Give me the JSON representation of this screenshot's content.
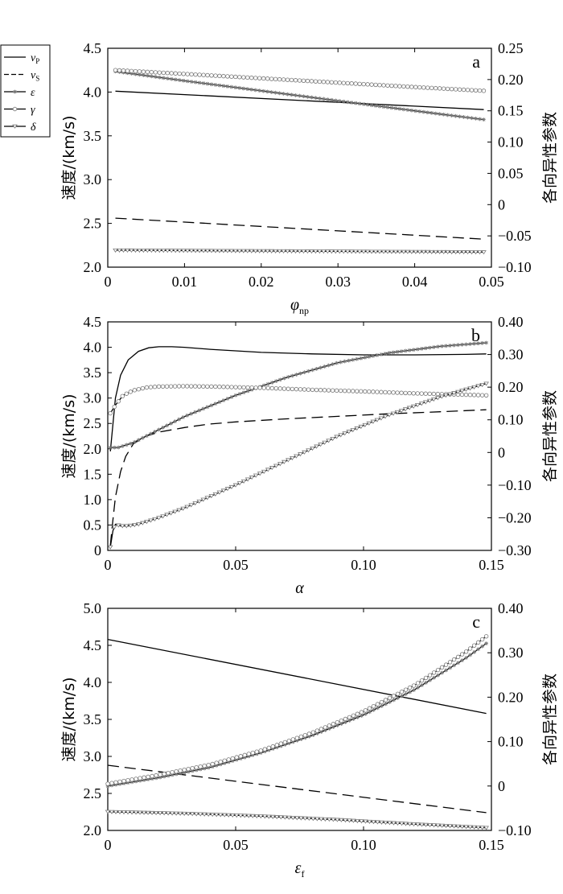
{
  "legend": {
    "items": [
      {
        "symbol": "v",
        "sub": "P",
        "style": "solid",
        "marker": "none"
      },
      {
        "symbol": "v",
        "sub": "S",
        "style": "dashed",
        "marker": "none"
      },
      {
        "symbol": "ε",
        "sub": "",
        "style": "solid",
        "marker": "star"
      },
      {
        "symbol": "γ",
        "sub": "",
        "style": "solid",
        "marker": "circle"
      },
      {
        "symbol": "δ",
        "sub": "",
        "style": "solid",
        "marker": "triangle"
      }
    ]
  },
  "chart_data": [
    {
      "type": "line",
      "panel_label": "a",
      "xlabel": "φ",
      "xlabel_sub": "np",
      "ylabel": "速度/(km/s)",
      "y2label": "各向异性参数",
      "xlim": [
        0,
        0.05
      ],
      "ylim": [
        2.0,
        4.5
      ],
      "y2lim": [
        -0.1,
        0.25
      ],
      "xticks": [
        "0",
        "0.01",
        "0.02",
        "0.03",
        "0.04",
        "0.05"
      ],
      "yticks": [
        "2.0",
        "2.5",
        "3.0",
        "3.5",
        "4.0",
        "4.5"
      ],
      "y2ticks": [
        "−0.10",
        "−0.05",
        "0",
        "0.05",
        "0.10",
        "0.15",
        "0.20",
        "0.25"
      ],
      "series": [
        {
          "name": "vP",
          "axis": "left",
          "x": [
            0.001,
            0.049
          ],
          "y": [
            4.01,
            3.8
          ]
        },
        {
          "name": "vS",
          "axis": "left",
          "x": [
            0.001,
            0.049
          ],
          "y": [
            2.56,
            2.32
          ]
        },
        {
          "name": "ε",
          "axis": "right",
          "x": [
            0.001,
            0.01,
            0.02,
            0.03,
            0.04,
            0.049
          ],
          "y": [
            0.213,
            0.198,
            0.182,
            0.166,
            0.15,
            0.136
          ]
        },
        {
          "name": "γ",
          "axis": "right",
          "x": [
            0.001,
            0.01,
            0.02,
            0.03,
            0.04,
            0.049
          ],
          "y": [
            0.215,
            0.209,
            0.202,
            0.195,
            0.188,
            0.182
          ]
        },
        {
          "name": "δ",
          "axis": "right",
          "x": [
            0.001,
            0.049
          ],
          "y": [
            -0.073,
            -0.076
          ]
        }
      ]
    },
    {
      "type": "line",
      "panel_label": "b",
      "xlabel": "α",
      "xlabel_sub": "",
      "ylabel": "速度/(km/s)",
      "y2label": "各向异性参数",
      "xlim": [
        0,
        0.15
      ],
      "ylim": [
        0,
        4.5
      ],
      "y2lim": [
        -0.3,
        0.4
      ],
      "xticks": [
        "0",
        "0.05",
        "0.10",
        "0.15"
      ],
      "yticks": [
        "0",
        "0.5",
        "1.0",
        "1.5",
        "2.0",
        "2.5",
        "3.0",
        "3.5",
        "4.0",
        "4.5"
      ],
      "y2ticks": [
        "−0.30",
        "−0.20",
        "−0.10",
        "0",
        "0.10",
        "0.20",
        "0.30",
        "0.40"
      ],
      "series": [
        {
          "name": "vP",
          "axis": "left",
          "x": [
            0.001,
            0.003,
            0.005,
            0.008,
            0.012,
            0.016,
            0.02,
            0.025,
            0.03,
            0.04,
            0.06,
            0.08,
            0.1,
            0.12,
            0.14,
            0.148
          ],
          "y": [
            1.95,
            3.0,
            3.45,
            3.75,
            3.92,
            3.99,
            4.01,
            4.01,
            4.0,
            3.96,
            3.9,
            3.87,
            3.85,
            3.85,
            3.86,
            3.87
          ]
        },
        {
          "name": "vS",
          "axis": "left",
          "x": [
            0.001,
            0.002,
            0.003,
            0.005,
            0.007,
            0.01,
            0.015,
            0.02,
            0.03,
            0.04,
            0.05,
            0.07,
            0.09,
            0.11,
            0.13,
            0.148
          ],
          "y": [
            0.1,
            0.6,
            1.05,
            1.55,
            1.85,
            2.1,
            2.25,
            2.33,
            2.42,
            2.49,
            2.53,
            2.59,
            2.64,
            2.69,
            2.73,
            2.77
          ]
        },
        {
          "name": "ε",
          "axis": "right",
          "x": [
            0.001,
            0.004,
            0.01,
            0.02,
            0.03,
            0.05,
            0.07,
            0.09,
            0.11,
            0.13,
            0.148
          ],
          "y": [
            0.015,
            0.015,
            0.03,
            0.07,
            0.11,
            0.175,
            0.23,
            0.275,
            0.305,
            0.325,
            0.336
          ]
        },
        {
          "name": "γ",
          "axis": "right",
          "x": [
            0.001,
            0.003,
            0.006,
            0.01,
            0.015,
            0.02,
            0.03,
            0.04,
            0.06,
            0.08,
            0.1,
            0.12,
            0.148
          ],
          "y": [
            0.12,
            0.145,
            0.175,
            0.19,
            0.199,
            0.202,
            0.203,
            0.202,
            0.198,
            0.192,
            0.187,
            0.181,
            0.175
          ]
        },
        {
          "name": "δ",
          "axis": "right",
          "x": [
            0.001,
            0.002,
            0.003,
            0.005,
            0.008,
            0.012,
            0.02,
            0.03,
            0.05,
            0.07,
            0.09,
            0.11,
            0.13,
            0.148
          ],
          "y": [
            -0.29,
            -0.24,
            -0.22,
            -0.225,
            -0.225,
            -0.22,
            -0.2,
            -0.17,
            -0.1,
            -0.025,
            0.05,
            0.115,
            0.17,
            0.211
          ]
        }
      ]
    },
    {
      "type": "line",
      "panel_label": "c",
      "xlabel": "ε",
      "xlabel_sub": "f",
      "ylabel": "速度/(km/s)",
      "y2label": "各向异性参数",
      "xlim": [
        0,
        0.15
      ],
      "ylim": [
        2.0,
        5.0
      ],
      "y2lim": [
        -0.1,
        0.4
      ],
      "xticks": [
        "0",
        "0.05",
        "0.10",
        "0.15"
      ],
      "yticks": [
        "2.0",
        "2.5",
        "3.0",
        "3.5",
        "4.0",
        "4.5",
        "5.0"
      ],
      "y2ticks": [
        "−0.10",
        "0",
        "0.10",
        "0.20",
        "0.30",
        "0.40"
      ],
      "series": [
        {
          "name": "vP",
          "axis": "left",
          "x": [
            0,
            0.148
          ],
          "y": [
            4.58,
            3.58
          ]
        },
        {
          "name": "vS",
          "axis": "left",
          "x": [
            0,
            0.148
          ],
          "y": [
            2.88,
            2.24
          ]
        },
        {
          "name": "ε",
          "axis": "right",
          "x": [
            0,
            0.02,
            0.04,
            0.06,
            0.08,
            0.1,
            0.12,
            0.14,
            0.148
          ],
          "y": [
            0.0,
            0.019,
            0.042,
            0.075,
            0.114,
            0.16,
            0.217,
            0.288,
            0.321
          ]
        },
        {
          "name": "γ",
          "axis": "right",
          "x": [
            0,
            0.02,
            0.04,
            0.06,
            0.08,
            0.1,
            0.12,
            0.14,
            0.148
          ],
          "y": [
            0.005,
            0.025,
            0.048,
            0.08,
            0.12,
            0.168,
            0.227,
            0.302,
            0.337
          ]
        },
        {
          "name": "δ",
          "axis": "right",
          "x": [
            0,
            0.03,
            0.06,
            0.09,
            0.12,
            0.148
          ],
          "y": [
            -0.058,
            -0.062,
            -0.068,
            -0.076,
            -0.086,
            -0.094
          ]
        }
      ]
    }
  ]
}
